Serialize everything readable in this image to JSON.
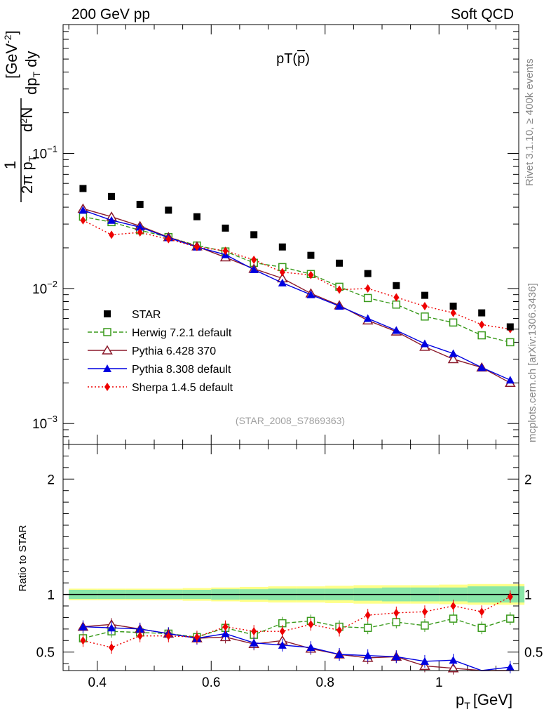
{
  "header": {
    "left": "200 GeV pp",
    "right": "Soft QCD"
  },
  "side_text": {
    "rivet": "Rivet 3.1.10, ≥ 400k events",
    "source": "mcplots.cern.ch [arXiv:1306.3436]"
  },
  "chart_data": {
    "type": "scatter",
    "title": "pT(p̄)",
    "title_main": "pT(",
    "title_particle": "p",
    "title_close": ")",
    "analysis_tag": "(STAR_2008_S7869363)",
    "xlabel": "p_T [GeV]",
    "xlabel_main": "p",
    "xlabel_sub": "T",
    "xlabel_unit": "[GeV]",
    "ylabel": "1/(2π p_T) d²N/(dp_T dy) [GeV⁻²]",
    "ylabel_parts": {
      "one": "1",
      "den": "2π p",
      "num": "d",
      "numexp": "2",
      "numN": "N",
      "dp": "dp",
      "dy": "dy",
      "sub": "T",
      "unit": "[GeV",
      "unitexp": "-2",
      "unitclose": "]"
    },
    "ratio_ylabel": "Ratio to STAR",
    "xlim": [
      0.34,
      1.14
    ],
    "ylim": [
      0.0007,
      0.9
    ],
    "yscale": "log",
    "ratio_ylim": [
      0.34,
      2.3
    ],
    "x_ticks": [
      {
        "v": 0.4,
        "label": "0.4"
      },
      {
        "v": 0.6,
        "label": "0.6"
      },
      {
        "v": 0.8,
        "label": "0.8"
      },
      {
        "v": 1.0,
        "label": "1"
      }
    ],
    "y_ticks": [
      {
        "v": 0.1,
        "base": "10",
        "exp": "−1"
      },
      {
        "v": 0.01,
        "base": "10",
        "exp": "−2"
      },
      {
        "v": 0.001,
        "base": "10",
        "exp": "−3"
      }
    ],
    "ratio_ticks": [
      {
        "v": 0.5,
        "label": "0.5"
      },
      {
        "v": 1,
        "label": "1"
      },
      {
        "v": 2,
        "label": "2"
      }
    ],
    "x": [
      0.375,
      0.425,
      0.475,
      0.525,
      0.575,
      0.625,
      0.675,
      0.725,
      0.775,
      0.825,
      0.875,
      0.925,
      0.975,
      1.025,
      1.075,
      1.125
    ],
    "series": [
      {
        "name": "STAR",
        "color": "#000000",
        "marker": "square-filled",
        "line": "none",
        "values": [
          0.055,
          0.048,
          0.042,
          0.038,
          0.034,
          0.028,
          0.025,
          0.0203,
          0.0176,
          0.0154,
          0.0129,
          0.0105,
          0.0089,
          0.0074,
          0.0066,
          0.0052
        ]
      },
      {
        "name": "Herwig 7.2.1 default",
        "color": "#3a9a1c",
        "marker": "square-open",
        "line": "dashed",
        "values": [
          0.034,
          0.031,
          0.027,
          0.024,
          0.0208,
          0.0188,
          0.0155,
          0.0144,
          0.0128,
          0.0103,
          0.0085,
          0.0076,
          0.0062,
          0.0056,
          0.0045,
          0.004
        ]
      },
      {
        "name": "Pythia 6.428 370",
        "color": "#8b1a2b",
        "marker": "triangle-open",
        "line": "solid",
        "values": [
          0.039,
          0.034,
          0.029,
          0.024,
          0.0205,
          0.017,
          0.014,
          0.0119,
          0.0092,
          0.0075,
          0.0058,
          0.0048,
          0.0037,
          0.003,
          0.0026,
          0.002
        ]
      },
      {
        "name": "Pythia 8.308 default",
        "color": "#0000e0",
        "marker": "triangle-filled",
        "line": "solid",
        "values": [
          0.038,
          0.032,
          0.0285,
          0.0238,
          0.0203,
          0.0178,
          0.0138,
          0.011,
          0.009,
          0.0074,
          0.006,
          0.0049,
          0.0039,
          0.0033,
          0.0026,
          0.0021
        ]
      },
      {
        "name": "Sherpa 1.4.5 default",
        "color": "#ee0000",
        "marker": "diamond-filled",
        "line": "dotted",
        "values": [
          0.032,
          0.025,
          0.026,
          0.0232,
          0.0203,
          0.019,
          0.0163,
          0.0132,
          0.0126,
          0.0098,
          0.01,
          0.0086,
          0.0074,
          0.0066,
          0.0054,
          0.005
        ]
      }
    ],
    "ratio": {
      "reference": 1.0,
      "band_inner": [
        0.04,
        0.04,
        0.04,
        0.04,
        0.04,
        0.045,
        0.045,
        0.05,
        0.05,
        0.05,
        0.055,
        0.06,
        0.06,
        0.06,
        0.07,
        0.07
      ],
      "band_outer": [
        0.05,
        0.05,
        0.05,
        0.05,
        0.055,
        0.06,
        0.065,
        0.07,
        0.07,
        0.075,
        0.08,
        0.08,
        0.08,
        0.085,
        0.09,
        0.09
      ],
      "series": [
        {
          "name": "Herwig 7.2.1 default",
          "values": [
            0.62,
            0.68,
            0.67,
            0.66,
            0.63,
            0.71,
            0.65,
            0.75,
            0.77,
            0.72,
            0.71,
            0.76,
            0.73,
            0.79,
            0.71,
            0.79
          ]
        },
        {
          "name": "Pythia 6.428 370",
          "values": [
            0.72,
            0.74,
            0.7,
            0.66,
            0.62,
            0.63,
            0.57,
            0.6,
            0.53,
            0.48,
            0.45,
            0.46,
            0.38,
            0.36,
            0.31,
            0.32
          ]
        },
        {
          "name": "Pythia 8.308 default",
          "values": [
            0.72,
            0.71,
            0.7,
            0.66,
            0.62,
            0.66,
            0.58,
            0.56,
            0.54,
            0.48,
            0.47,
            0.46,
            0.42,
            0.43,
            0.33,
            0.37
          ]
        },
        {
          "name": "Sherpa 1.4.5 default",
          "values": [
            0.6,
            0.54,
            0.64,
            0.64,
            0.63,
            0.72,
            0.68,
            0.68,
            0.74,
            0.69,
            0.82,
            0.84,
            0.85,
            0.9,
            0.85,
            0.98
          ]
        }
      ]
    },
    "legend_position": "lower-left"
  }
}
